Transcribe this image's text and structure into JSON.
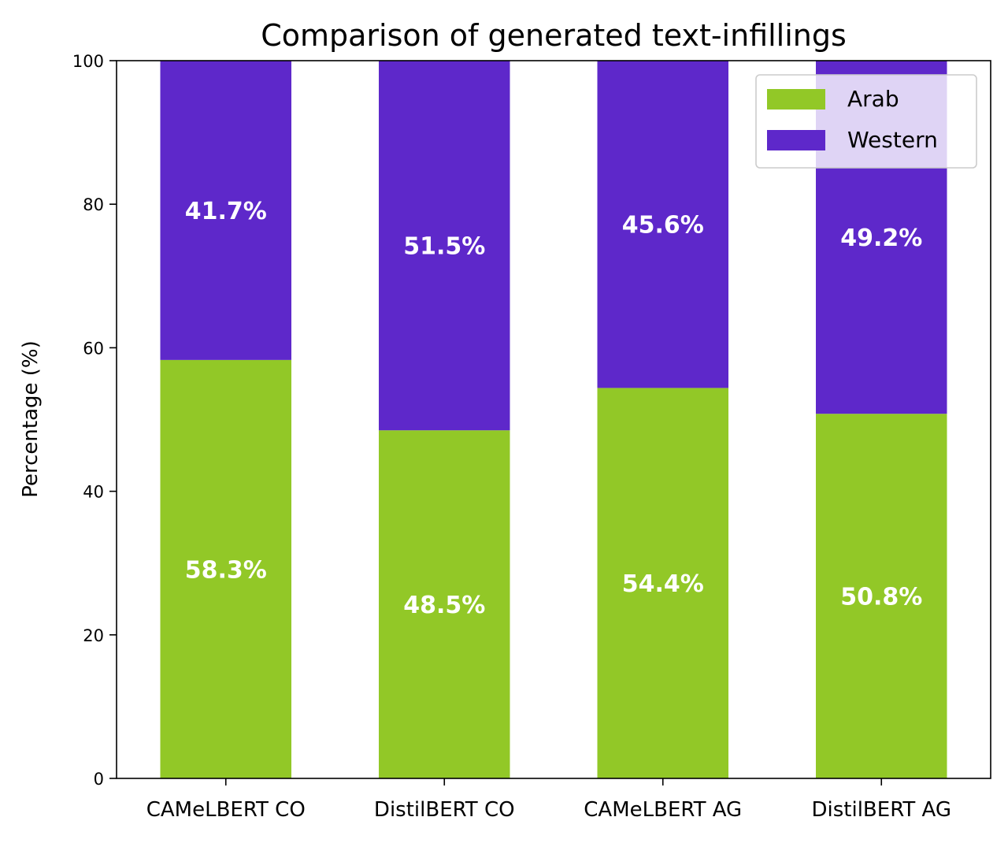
{
  "chart_data": {
    "type": "bar",
    "stacked": true,
    "title": "Comparison of generated text-infillings",
    "xlabel": "",
    "ylabel": "Percentage (%)",
    "ylim": [
      0,
      100
    ],
    "yticks": [
      0,
      20,
      40,
      60,
      80,
      100
    ],
    "categories": [
      "CAMeLBERT CO",
      "DistilBERT CO",
      "CAMeLBERT AG",
      "DistilBERT AG"
    ],
    "series": [
      {
        "name": "Arab",
        "color": "#92c827",
        "values": [
          58.3,
          48.5,
          54.4,
          50.8
        ],
        "labels": [
          "58.3%",
          "48.5%",
          "54.4%",
          "50.8%"
        ]
      },
      {
        "name": "Western",
        "color": "#5e28ca",
        "values": [
          41.7,
          51.5,
          45.6,
          49.2
        ],
        "labels": [
          "41.7%",
          "51.5%",
          "45.6%",
          "49.2%"
        ]
      }
    ],
    "grid": false,
    "legend": "top-right"
  }
}
